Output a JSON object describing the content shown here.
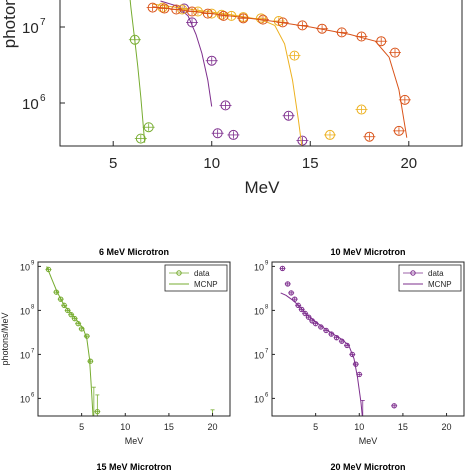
{
  "chart_data": [
    {
      "id": "main",
      "type": "scatter",
      "title": "",
      "xlabel": "MeV",
      "ylabel": "photons",
      "xticks": [
        "5",
        "10",
        "15",
        "20"
      ],
      "yticks": [
        {
          "base": "10",
          "exp": "6",
          "value": 1000000
        },
        {
          "base": "10",
          "exp": "7",
          "value": 10000000
        }
      ],
      "log_y": true,
      "series": [
        {
          "color": "#77ac30",
          "points": [
            [
              6.1,
              6800000.0
            ],
            [
              6.4,
              340000.0
            ],
            [
              6.8,
              480000.0
            ]
          ],
          "fit": [
            [
              5.5,
              220000000.0
            ],
            [
              5.7,
              60000000.0
            ],
            [
              5.9,
              18000000.0
            ],
            [
              6.1,
              6500000.0
            ],
            [
              6.25,
              3000000.0
            ],
            [
              6.4,
              1200000.0
            ],
            [
              6.6,
              300000.0
            ]
          ]
        },
        {
          "color": "#7e2f8e",
          "points": [
            [
              8.6,
              17500000.0
            ],
            [
              9.0,
              11500000.0
            ],
            [
              10.0,
              3600000.0
            ],
            [
              10.3,
              400000.0
            ],
            [
              10.7,
              930000.0
            ],
            [
              11.1,
              380000.0
            ],
            [
              13.9,
              680000.0
            ],
            [
              14.6,
              320000.0
            ]
          ],
          "fit": [
            [
              7.4,
              22000000.0
            ],
            [
              8.2,
              19000000.0
            ],
            [
              8.8,
              14000000.0
            ],
            [
              9.2,
              8000000.0
            ],
            [
              9.5,
              4500000.0
            ],
            [
              9.8,
              2000000.0
            ],
            [
              10.0,
              900000.0
            ]
          ]
        },
        {
          "color": "#edb120",
          "points": [
            [
              7.5,
              18000000.0
            ],
            [
              8.5,
              17000000.0
            ],
            [
              9.3,
              16000000.0
            ],
            [
              10.0,
              15000000.0
            ],
            [
              10.5,
              14500000.0
            ],
            [
              11.0,
              14000000.0
            ],
            [
              11.6,
              13500000.0
            ],
            [
              12.5,
              13000000.0
            ],
            [
              13.4,
              12000000.0
            ],
            [
              14.2,
              4200000.0
            ],
            [
              16.0,
              380000.0
            ],
            [
              17.6,
              820000.0
            ]
          ],
          "fit": [
            [
              7.0,
              20000000.0
            ],
            [
              9.0,
              17000000.0
            ],
            [
              11.0,
              14500000.0
            ],
            [
              12.5,
              12500000.0
            ],
            [
              13.2,
              10500000.0
            ],
            [
              13.7,
              6000000.0
            ],
            [
              14.1,
              2000000.0
            ],
            [
              14.4,
              600000.0
            ],
            [
              14.7,
              150000.0
            ]
          ]
        },
        {
          "color": "#d95319",
          "points": [
            [
              7.0,
              18000000.0
            ],
            [
              7.6,
              17500000.0
            ],
            [
              8.2,
              17000000.0
            ],
            [
              9.0,
              16000000.0
            ],
            [
              9.8,
              15000000.0
            ],
            [
              10.6,
              14000000.0
            ],
            [
              11.6,
              13000000.0
            ],
            [
              12.6,
              12500000.0
            ],
            [
              13.6,
              11500000.0
            ],
            [
              14.6,
              10500000.0
            ],
            [
              15.6,
              9500000.0
            ],
            [
              16.6,
              8500000.0
            ],
            [
              17.6,
              7500000.0
            ],
            [
              18.6,
              6500000.0
            ],
            [
              19.8,
              1100000.0
            ],
            [
              19.3,
              4600000.0
            ],
            [
              19.5,
              430000.0
            ],
            [
              18.0,
              360000.0
            ]
          ],
          "fit": [
            [
              7.0,
              18500000.0
            ],
            [
              10.0,
              15000000.0
            ],
            [
              13.0,
              12000000.0
            ],
            [
              15.0,
              10000000.0
            ],
            [
              17.0,
              8000000.0
            ],
            [
              18.3,
              6500000.0
            ],
            [
              19.0,
              4000000.0
            ],
            [
              19.5,
              1500000.0
            ],
            [
              19.9,
              350000.0
            ]
          ]
        }
      ]
    },
    {
      "id": "p6",
      "type": "scatter",
      "title": "6 MeV Microtron",
      "xlabel": "MeV",
      "ylabel": "photons/MeV",
      "xticks": [
        "5",
        "10",
        "15",
        "20"
      ],
      "yticks": [
        {
          "base": "10",
          "exp": "6",
          "value": 1000000
        },
        {
          "base": "10",
          "exp": "7",
          "value": 10000000
        },
        {
          "base": "10",
          "exp": "8",
          "value": 100000000
        },
        {
          "base": "10",
          "exp": "9",
          "value": 1000000000
        }
      ],
      "log_y": true,
      "legend": [
        "data",
        "MCNP"
      ],
      "color": "#77ac30",
      "points": [
        [
          1.2,
          850000000.0
        ],
        [
          2.1,
          260000000.0
        ],
        [
          2.6,
          180000000.0
        ],
        [
          3.0,
          130000000.0
        ],
        [
          3.4,
          100000000.0
        ],
        [
          3.8,
          80000000.0
        ],
        [
          4.2,
          65000000.0
        ],
        [
          4.6,
          50000000.0
        ],
        [
          5.0,
          38000000.0
        ],
        [
          5.6,
          26000000.0
        ],
        [
          6.0,
          7000000.0
        ],
        [
          6.4,
          330000.0
        ],
        [
          6.8,
          500000.0
        ],
        [
          11.0,
          340000.0
        ]
      ],
      "errors": [
        [
          6.4,
          1800000.0,
          200000.0
        ],
        [
          6.8,
          1200000.0,
          250000.0
        ],
        [
          20.0,
          550000.0,
          250000.0
        ]
      ],
      "fit": [
        [
          1.0,
          1000000000.0
        ],
        [
          1.6,
          500000000.0
        ],
        [
          2.2,
          260000000.0
        ],
        [
          3.0,
          130000000.0
        ],
        [
          3.8,
          85000000.0
        ],
        [
          4.6,
          55000000.0
        ],
        [
          5.2,
          38000000.0
        ],
        [
          5.6,
          22000000.0
        ],
        [
          5.9,
          8000000.0
        ],
        [
          6.1,
          2000000.0
        ],
        [
          6.3,
          400000.0
        ]
      ]
    },
    {
      "id": "p10",
      "type": "scatter",
      "title": "10 MeV Microtron",
      "xlabel": "MeV",
      "ylabel": "photons/MeV",
      "xticks": [
        "5",
        "10",
        "15",
        "20"
      ],
      "yticks": [
        {
          "base": "10",
          "exp": "6",
          "value": 1000000
        },
        {
          "base": "10",
          "exp": "7",
          "value": 10000000
        },
        {
          "base": "10",
          "exp": "8",
          "value": 100000000
        },
        {
          "base": "10",
          "exp": "9",
          "value": 1000000000
        }
      ],
      "log_y": true,
      "legend": [
        "data",
        "MCNP"
      ],
      "color": "#7e2f8e",
      "points": [
        [
          1.2,
          900000000.0
        ],
        [
          1.8,
          400000000.0
        ],
        [
          2.2,
          250000000.0
        ],
        [
          2.6,
          180000000.0
        ],
        [
          3.0,
          130000000.0
        ],
        [
          3.4,
          105000000.0
        ],
        [
          3.8,
          85000000.0
        ],
        [
          4.2,
          70000000.0
        ],
        [
          4.6,
          58000000.0
        ],
        [
          5.0,
          50000000.0
        ],
        [
          5.6,
          42000000.0
        ],
        [
          6.2,
          35000000.0
        ],
        [
          6.8,
          29000000.0
        ],
        [
          7.4,
          24000000.0
        ],
        [
          8.0,
          20000000.0
        ],
        [
          8.6,
          16000000.0
        ],
        [
          9.2,
          10000000.0
        ],
        [
          9.6,
          6000000.0
        ],
        [
          10.0,
          3500000.0
        ],
        [
          10.4,
          350000.0
        ],
        [
          14.0,
          680000.0
        ]
      ],
      "errors": [
        [
          10.4,
          900000.0,
          300000.0
        ]
      ],
      "fit": [
        [
          1.0,
          250000000.0
        ],
        [
          1.6,
          220000000.0
        ],
        [
          2.4,
          170000000.0
        ],
        [
          3.2,
          120000000.0
        ],
        [
          4.0,
          80000000.0
        ],
        [
          5.0,
          55000000.0
        ],
        [
          6.0,
          39000000.0
        ],
        [
          7.0,
          29000000.0
        ],
        [
          8.0,
          22000000.0
        ],
        [
          8.8,
          16000000.0
        ],
        [
          9.4,
          8000000.0
        ],
        [
          9.8,
          3000000.0
        ],
        [
          10.2,
          800000.0
        ],
        [
          10.4,
          300000.0
        ]
      ]
    },
    {
      "id": "p15",
      "title": "15 MeV Microtron"
    },
    {
      "id": "p20",
      "title": "20 MeV Microtron"
    }
  ]
}
